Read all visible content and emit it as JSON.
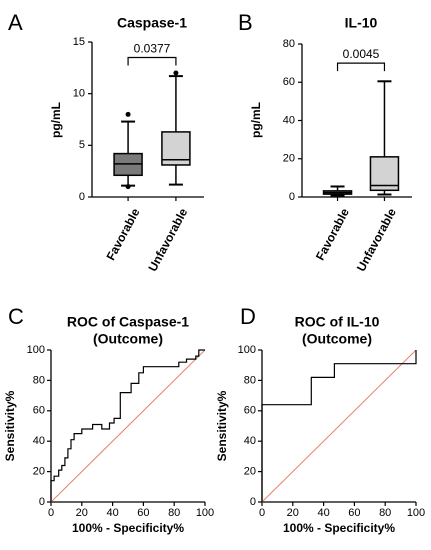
{
  "colors": {
    "axis": "#000000",
    "box_dark": "#7a7a7a",
    "box_light": "#d3d3d3",
    "diagonal": "#e6826b",
    "roc": "#000000"
  },
  "chart_data": [
    {
      "panel": "A",
      "type": "boxplot",
      "title": "Caspase-1",
      "ylabel": "pg/mL",
      "xlabel": "",
      "ylim": [
        0,
        15
      ],
      "yticks": [
        "0",
        "5",
        "10",
        "15"
      ],
      "categories": [
        "Favorable",
        "Unfavorable"
      ],
      "boxes": [
        {
          "name": "Favorable",
          "whisker_low": 1.1,
          "q1": 2.1,
          "median": 3.2,
          "q3": 4.2,
          "whisker_high": 7.3,
          "outliers": [
            1.0,
            8.0
          ]
        },
        {
          "name": "Unfavorable",
          "whisker_low": 1.2,
          "q1": 3.1,
          "median": 3.6,
          "q3": 6.3,
          "whisker_high": 11.7,
          "outliers": [
            12.0
          ]
        }
      ],
      "annotation": {
        "text": "0.0377",
        "bracket_y": 13.5
      }
    },
    {
      "panel": "B",
      "type": "boxplot",
      "title": "IL-10",
      "ylabel": "pg/mL",
      "xlabel": "",
      "ylim": [
        0,
        80
      ],
      "yticks": [
        "0",
        "20",
        "40",
        "60",
        "80"
      ],
      "categories": [
        "Favorable",
        "Unfavorable"
      ],
      "boxes": [
        {
          "name": "Favorable",
          "whisker_low": 0.8,
          "q1": 1.5,
          "median": 2.3,
          "q3": 3.2,
          "whisker_high": 5.5,
          "outliers": []
        },
        {
          "name": "Unfavorable",
          "whisker_low": 1.3,
          "q1": 3.5,
          "median": 6.0,
          "q3": 21.0,
          "whisker_high": 60.5,
          "outliers": []
        }
      ],
      "annotation": {
        "text": "0.0045",
        "bracket_y": 70
      }
    },
    {
      "panel": "C",
      "type": "line",
      "title": "ROC of Caspase-1",
      "subtitle": "(Outcome)",
      "xlabel": "100% - Specificity%",
      "ylabel": "Sensitivity%",
      "xlim": [
        0,
        100
      ],
      "ylim": [
        0,
        100
      ],
      "xticks": [
        "0",
        "20",
        "40",
        "60",
        "80",
        "100"
      ],
      "yticks": [
        "0",
        "20",
        "40",
        "60",
        "80",
        "100"
      ],
      "x": [
        0,
        0,
        2,
        2,
        5,
        5,
        7,
        7,
        9,
        9,
        11,
        11,
        13,
        13,
        15,
        15,
        20,
        20,
        27,
        27,
        33,
        33,
        38,
        38,
        41,
        41,
        45,
        45,
        52,
        52,
        57,
        57,
        60,
        60,
        64,
        64,
        72,
        72,
        83,
        83,
        88,
        88,
        92,
        92,
        94,
        94,
        96,
        96,
        100
      ],
      "y": [
        0,
        14,
        14,
        17,
        17,
        21,
        21,
        24,
        24,
        29,
        29,
        35,
        35,
        41,
        41,
        45,
        45,
        48,
        48,
        51,
        51,
        48,
        48,
        52,
        52,
        55,
        55,
        72,
        72,
        78,
        78,
        85,
        85,
        89,
        89,
        89,
        89,
        89,
        89,
        92,
        92,
        94,
        94,
        94,
        94,
        96,
        96,
        100,
        100
      ],
      "diagonal": {
        "x": [
          0,
          100
        ],
        "y": [
          0,
          100
        ]
      }
    },
    {
      "panel": "D",
      "type": "line",
      "title": "ROC of IL-10",
      "subtitle": "(Outcome)",
      "xlabel": "100% - Specificity%",
      "ylabel": "Sensitivity%",
      "xlim": [
        0,
        100
      ],
      "ylim": [
        0,
        100
      ],
      "xticks": [
        "0",
        "20",
        "40",
        "60",
        "80",
        "100"
      ],
      "yticks": [
        "0",
        "20",
        "40",
        "60",
        "80",
        "100"
      ],
      "x": [
        0,
        0,
        32,
        32,
        47,
        47,
        100,
        100
      ],
      "y": [
        0,
        64,
        64,
        82,
        82,
        91,
        91,
        100
      ],
      "diagonal": {
        "x": [
          0,
          100
        ],
        "y": [
          0,
          100
        ]
      }
    }
  ]
}
